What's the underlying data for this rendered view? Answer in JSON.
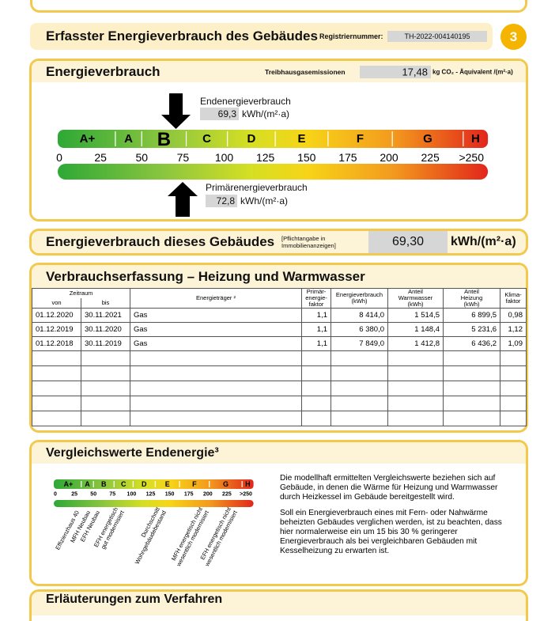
{
  "header": {
    "title": "Erfasster Energieverbrauch des Gebäudes",
    "registration_label": "Registriernummer:",
    "registration_number": "TH-2022-004140195",
    "page_number": "3"
  },
  "energy_consumption": {
    "title": "Energieverbrauch",
    "emissions_label": "Treibhausgasemissionen",
    "emissions_value": "17,48",
    "emissions_unit": "kg CO₂ - Äquivalent /(m²·a)",
    "final_energy": {
      "label": "Endenergieverbrauch",
      "value": "69,3",
      "unit": "kWh/(m²·a)"
    },
    "primary_energy": {
      "label": "Primärenergieverbrauch",
      "value": "72,8",
      "unit": "kWh/(m²·a)"
    },
    "scale": {
      "classes": [
        "A+",
        "A",
        "B",
        "C",
        "D",
        "E",
        "F",
        "G",
        "H"
      ],
      "ticks": [
        "0",
        "25",
        "50",
        "75",
        "100",
        "125",
        "150",
        "175",
        "200",
        "225",
        ">250"
      ]
    }
  },
  "building_consumption": {
    "title": "Energieverbrauch dieses Gebäudes",
    "note": "[Pflichtangabe in\nImmobilienanzeigen]",
    "value": "69,30",
    "unit": "kWh/(m²·a)"
  },
  "consumption_table": {
    "title": "Verbrauchserfassung – Heizung und Warmwasser",
    "group_header": "Zeitraum",
    "columns": [
      "von",
      "bis",
      "Energieträger ²",
      "Primär-\nenergie-\nfaktor",
      "Energieverbrauch\n(kWh)",
      "Anteil\nWarmwasser\n(kWh)",
      "Anteil\nHeizung\n(kWh)",
      "Klima-\nfaktor"
    ],
    "rows": [
      [
        "01.12.2020",
        "30.11.2021",
        "Gas",
        "1,1",
        "8 414,0",
        "1 514,5",
        "6 899,5",
        "0,98"
      ],
      [
        "01.12.2019",
        "30.11.2020",
        "Gas",
        "1,1",
        "6 380,0",
        "1 148,4",
        "5 231,6",
        "1,12"
      ],
      [
        "01.12.2018",
        "30.11.2019",
        "Gas",
        "1,1",
        "7 849,0",
        "1 412,8",
        "6 436,2",
        "1,09"
      ]
    ]
  },
  "comparison": {
    "title": "Vergleichswerte Endenergie³",
    "reference_labels": [
      [
        "Effizienzhaus 40"
      ],
      [
        "MFH Neubau"
      ],
      [
        "EFH Neubau"
      ],
      [
        "EFH energetisch",
        "gut modernisiert"
      ],
      [
        "Durchschnitt",
        "Wohngebäudebestand"
      ],
      [
        "MFH energetisch nicht",
        "wesentlich modernisiert"
      ],
      [
        "EFH energetisch nicht",
        "wesentlich modernisiert"
      ]
    ],
    "paragraphs": [
      "Die modellhaft ermittelten Vergleichswerte beziehen sich auf Gebäude, in denen die Wärme für Heizung und Warmwasser durch Heizkessel im Gebäude bereitgestellt wird.",
      "Soll ein Energieverbrauch eines mit Fern- oder Nahwärme beheizten Gebäudes verglichen werden, ist zu beachten, dass hier normalerweise ein um 15 bis 30 % geringerer Energieverbrauch als bei vergleichbaren Gebäuden mit Kesselheizung zu erwarten ist."
    ]
  },
  "explanation": {
    "title": "Erläuterungen zum Verfahren"
  }
}
